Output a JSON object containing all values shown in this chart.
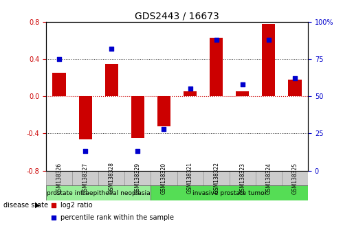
{
  "title": "GDS2443 / 16673",
  "samples": [
    "GSM138326",
    "GSM138327",
    "GSM138328",
    "GSM138329",
    "GSM138320",
    "GSM138321",
    "GSM138322",
    "GSM138323",
    "GSM138324",
    "GSM138325"
  ],
  "log2_ratio": [
    0.25,
    -0.46,
    0.35,
    -0.45,
    -0.32,
    0.05,
    0.63,
    0.05,
    0.78,
    0.18
  ],
  "percentile_rank": [
    75,
    13,
    82,
    13,
    28,
    55,
    88,
    58,
    88,
    62
  ],
  "bar_color": "#cc0000",
  "dot_color": "#0000cc",
  "ylim_left": [
    -0.8,
    0.8
  ],
  "ylim_right": [
    0,
    100
  ],
  "yticks_left": [
    -0.8,
    -0.4,
    0.0,
    0.4,
    0.8
  ],
  "yticks_right": [
    0,
    25,
    50,
    75,
    100
  ],
  "hlines": [
    -0.4,
    0.0,
    0.4
  ],
  "zero_line_color": "#cc0000",
  "dotted_line_color": "#333333",
  "groups": [
    {
      "label": "prostate intraepithelial neoplasia",
      "start": 0,
      "end": 4,
      "color": "#99ee99"
    },
    {
      "label": "invasive prostate tumor",
      "start": 4,
      "end": 10,
      "color": "#55dd55"
    }
  ],
  "disease_state_label": "disease state",
  "legend_items": [
    {
      "label": "log2 ratio",
      "color": "#cc0000"
    },
    {
      "label": "percentile rank within the sample",
      "color": "#0000cc"
    }
  ],
  "background_color": "#ffffff",
  "cell_color": "#cccccc",
  "tick_label_size": 7,
  "title_fontsize": 10,
  "bar_width": 0.5
}
